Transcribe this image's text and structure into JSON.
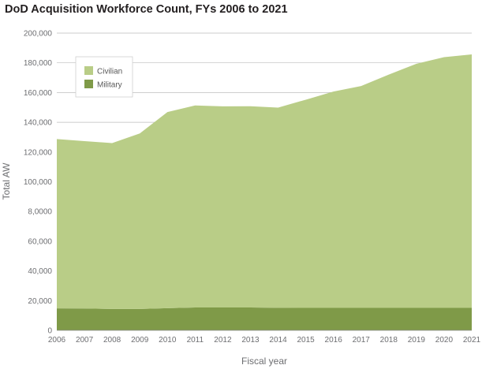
{
  "chart_data": {
    "type": "area",
    "stacked": true,
    "title": "DoD Acquisition Workforce Count, FYs 2006 to 2021",
    "xlabel": "Fiscal year",
    "ylabel": "Total AW",
    "x": [
      "2006",
      "2007",
      "2008",
      "2009",
      "2010",
      "2011",
      "2012",
      "2013",
      "2014",
      "2015",
      "2016",
      "2017",
      "2018",
      "2019",
      "2020",
      "2021"
    ],
    "ylim": [
      0,
      200000
    ],
    "yticks": [
      0,
      20000,
      40000,
      60000,
      80000,
      100000,
      120000,
      140000,
      160000,
      180000,
      200000
    ],
    "ytick_labels": [
      "0",
      "20,000",
      "40,000",
      "60,000",
      "8,0000",
      "100,000",
      "120,000",
      "140,000",
      "160,000",
      "180,000",
      "200,000"
    ],
    "grid": true,
    "legend_position": "top-left",
    "series": [
      {
        "name": "Military",
        "color": "#7f9a48",
        "values": [
          14800,
          14700,
          14400,
          14400,
          14900,
          15400,
          15400,
          15400,
          15200,
          15100,
          15100,
          15100,
          15100,
          15100,
          15100,
          15100
        ]
      },
      {
        "name": "Civilian",
        "color": "#b9cd87",
        "values": [
          113900,
          112600,
          111600,
          118100,
          132000,
          135900,
          135300,
          135400,
          134700,
          140100,
          145600,
          149300,
          157000,
          164300,
          168700,
          170600
        ]
      }
    ]
  }
}
